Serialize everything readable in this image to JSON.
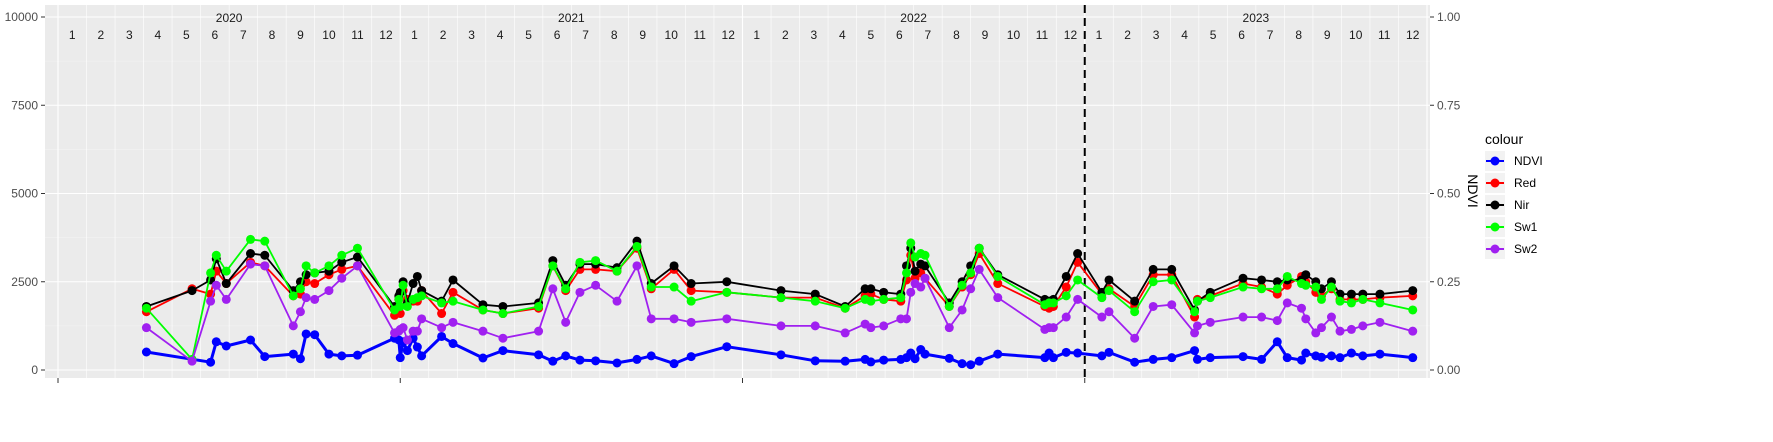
{
  "chart_data": {
    "type": "line",
    "y_right_label": "NDVI",
    "legend_title": "colour",
    "legend_position": "right",
    "grid": true,
    "y_left_ticks": [
      "0",
      "2500",
      "5000",
      "7500",
      "10000"
    ],
    "y_left_range": [
      0,
      10000
    ],
    "y_right_ticks": [
      "0.00",
      "0.25",
      "0.50",
      "0.75",
      "1.00"
    ],
    "y_right_range": [
      0,
      1
    ],
    "x_range": [
      0,
      48
    ],
    "years": [
      "2020",
      "2021",
      "2022",
      "2023"
    ],
    "months": [
      "1",
      "2",
      "3",
      "4",
      "5",
      "6",
      "7",
      "8",
      "9",
      "10",
      "11",
      "12"
    ],
    "vertical_dashed_line_x": 36.0,
    "series": [
      {
        "name": "NDVI",
        "color": "#0000ff",
        "x": [
          3.1,
          5.35,
          5.55,
          5.9,
          6.75,
          7.25,
          8.25,
          8.5,
          8.7,
          9.0,
          9.5,
          9.95,
          10.5,
          11.8,
          11.95,
          12.0,
          12.1,
          12.25,
          12.45,
          12.6,
          12.75,
          13.45,
          13.85,
          14.9,
          15.6,
          16.85,
          17.35,
          17.8,
          18.3,
          18.85,
          19.6,
          20.3,
          20.8,
          21.6,
          22.2,
          23.45,
          25.35,
          26.55,
          27.6,
          28.3,
          28.5,
          28.95,
          29.55,
          29.75,
          29.9,
          30.05,
          30.25,
          30.4,
          31.25,
          31.7,
          32.0,
          32.3,
          32.95,
          34.6,
          34.75,
          34.9,
          35.35,
          35.75,
          36.6,
          36.85,
          37.75,
          38.4,
          39.05,
          39.85,
          39.95,
          40.4,
          41.55,
          42.2,
          42.75,
          43.1,
          43.6,
          43.75,
          44.1,
          44.3,
          44.65,
          44.95,
          45.35,
          45.75,
          46.35,
          47.5
        ],
        "y": [
          0.051,
          0.022,
          0.08,
          0.068,
          0.085,
          0.038,
          0.045,
          0.032,
          0.102,
          0.1,
          0.045,
          0.04,
          0.042,
          0.09,
          0.085,
          0.035,
          0.08,
          0.055,
          0.09,
          0.065,
          0.04,
          0.095,
          0.075,
          0.034,
          0.055,
          0.043,
          0.025,
          0.04,
          0.028,
          0.026,
          0.02,
          0.03,
          0.04,
          0.018,
          0.038,
          0.066,
          0.043,
          0.026,
          0.025,
          0.03,
          0.023,
          0.028,
          0.03,
          0.035,
          0.048,
          0.032,
          0.058,
          0.045,
          0.033,
          0.018,
          0.015,
          0.025,
          0.045,
          0.035,
          0.048,
          0.035,
          0.05,
          0.048,
          0.04,
          0.05,
          0.022,
          0.03,
          0.035,
          0.055,
          0.03,
          0.035,
          0.038,
          0.03,
          0.08,
          0.035,
          0.028,
          0.048,
          0.04,
          0.036,
          0.04,
          0.035,
          0.048,
          0.04,
          0.045,
          0.035
        ]
      },
      {
        "name": "Red",
        "color": "#ff0000",
        "x": [
          3.1,
          4.7,
          5.35,
          5.55,
          5.9,
          6.75,
          7.25,
          8.25,
          8.5,
          8.7,
          9.0,
          9.5,
          9.95,
          10.5,
          11.8,
          11.95,
          12.0,
          12.1,
          12.25,
          12.45,
          12.6,
          12.75,
          13.45,
          13.85,
          14.9,
          15.6,
          16.85,
          17.35,
          17.8,
          18.3,
          18.85,
          19.6,
          20.3,
          20.8,
          21.6,
          22.2,
          23.45,
          25.35,
          26.55,
          27.6,
          28.3,
          28.5,
          28.95,
          29.55,
          29.75,
          29.9,
          30.05,
          30.25,
          30.4,
          31.25,
          31.7,
          32.0,
          32.3,
          32.95,
          34.6,
          34.75,
          34.9,
          35.35,
          35.75,
          36.6,
          36.85,
          37.75,
          38.4,
          39.05,
          39.85,
          39.95,
          40.4,
          41.55,
          42.2,
          42.75,
          43.1,
          43.6,
          43.75,
          44.1,
          44.3,
          44.65,
          44.95,
          45.35,
          45.75,
          46.35,
          47.5
        ],
        "y": [
          1650,
          2300,
          2150,
          2800,
          2450,
          3050,
          2950,
          2100,
          2150,
          2500,
          2450,
          2700,
          2850,
          2950,
          1550,
          2000,
          1600,
          2250,
          2000,
          1950,
          1950,
          2250,
          1600,
          2200,
          1700,
          1600,
          1750,
          2950,
          2250,
          2850,
          2850,
          2800,
          3450,
          2300,
          2850,
          2250,
          2200,
          2050,
          2050,
          1750,
          2100,
          2150,
          2000,
          1950,
          2550,
          3250,
          2600,
          2750,
          2600,
          1800,
          2350,
          2700,
          3300,
          2450,
          1800,
          1750,
          1800,
          2350,
          3050,
          2150,
          2300,
          1800,
          2700,
          2700,
          1500,
          2000,
          2100,
          2450,
          2350,
          2150,
          2400,
          2650,
          2500,
          2200,
          2100,
          2300,
          2000,
          2000,
          2000,
          2050,
          2100
        ]
      },
      {
        "name": "Nir",
        "color": "#000000",
        "x": [
          3.1,
          4.7,
          5.35,
          5.55,
          5.9,
          6.75,
          7.25,
          8.25,
          8.5,
          8.7,
          9.0,
          9.5,
          9.95,
          10.5,
          11.8,
          11.95,
          12.0,
          12.1,
          12.25,
          12.45,
          12.6,
          12.75,
          13.45,
          13.85,
          14.9,
          15.6,
          16.85,
          17.35,
          17.8,
          18.3,
          18.85,
          19.6,
          20.3,
          20.8,
          21.6,
          22.2,
          23.45,
          25.35,
          26.55,
          27.6,
          28.3,
          28.5,
          28.95,
          29.55,
          29.75,
          29.9,
          30.05,
          30.25,
          30.4,
          31.25,
          31.7,
          32.0,
          32.3,
          32.95,
          34.6,
          34.75,
          34.9,
          35.35,
          35.75,
          36.6,
          36.85,
          37.75,
          38.4,
          39.05,
          39.85,
          39.95,
          40.4,
          41.55,
          42.2,
          42.75,
          43.1,
          43.6,
          43.75,
          44.1,
          44.3,
          44.65,
          44.95,
          45.35,
          45.75,
          46.35,
          47.5
        ],
        "y": [
          1800,
          2250,
          2550,
          3150,
          2450,
          3300,
          3250,
          2250,
          2500,
          2700,
          2750,
          2800,
          3050,
          3200,
          1800,
          2100,
          2200,
          2500,
          1900,
          2450,
          2650,
          2250,
          1950,
          2550,
          1850,
          1800,
          1900,
          3100,
          2400,
          3000,
          3000,
          2900,
          3650,
          2450,
          2950,
          2450,
          2500,
          2250,
          2150,
          1800,
          2300,
          2300,
          2200,
          2150,
          2950,
          3450,
          2800,
          3000,
          2950,
          1900,
          2500,
          2950,
          3450,
          2700,
          2000,
          1950,
          2000,
          2650,
          3300,
          2200,
          2550,
          1950,
          2850,
          2850,
          1700,
          1950,
          2200,
          2600,
          2550,
          2500,
          2550,
          2550,
          2700,
          2500,
          2300,
          2500,
          2150,
          2150,
          2150,
          2150,
          2250
        ]
      },
      {
        "name": "Sw1",
        "color": "#00ff00",
        "x": [
          3.1,
          4.7,
          5.35,
          5.55,
          5.9,
          6.75,
          7.25,
          8.25,
          8.5,
          8.7,
          9.0,
          9.5,
          9.95,
          10.5,
          11.8,
          11.95,
          12.0,
          12.1,
          12.25,
          12.45,
          12.6,
          12.75,
          13.45,
          13.85,
          14.9,
          15.6,
          16.85,
          17.35,
          17.8,
          18.3,
          18.85,
          19.6,
          20.3,
          20.8,
          21.6,
          22.2,
          23.45,
          25.35,
          26.55,
          27.6,
          28.3,
          28.5,
          28.95,
          29.55,
          29.75,
          29.9,
          30.05,
          30.25,
          30.4,
          31.25,
          31.7,
          32.0,
          32.3,
          32.95,
          34.6,
          34.75,
          34.9,
          35.35,
          35.75,
          36.6,
          36.85,
          37.75,
          38.4,
          39.05,
          39.85,
          39.95,
          40.4,
          41.55,
          42.2,
          42.75,
          43.1,
          43.6,
          43.75,
          44.1,
          44.3,
          44.65,
          44.95,
          45.35,
          45.75,
          46.35,
          47.5
        ],
        "y": [
          1750,
          300,
          2750,
          3250,
          2800,
          3700,
          3650,
          2100,
          2300,
          2950,
          2750,
          2950,
          3250,
          3450,
          1700,
          2000,
          1800,
          2400,
          1800,
          2000,
          2050,
          2100,
          1900,
          1950,
          1700,
          1600,
          1800,
          2950,
          2300,
          3050,
          3100,
          2800,
          3500,
          2350,
          2350,
          1950,
          2200,
          2050,
          1950,
          1750,
          2000,
          1950,
          2000,
          2050,
          2750,
          3600,
          3200,
          3300,
          3250,
          1800,
          2400,
          2750,
          3450,
          2650,
          1850,
          1900,
          1900,
          2100,
          2550,
          2050,
          2250,
          1650,
          2500,
          2550,
          1650,
          1950,
          2050,
          2350,
          2300,
          2300,
          2650,
          2450,
          2400,
          2350,
          2000,
          2350,
          1950,
          1900,
          2000,
          1900,
          1700
        ]
      },
      {
        "name": "Sw2",
        "color": "#a020f0",
        "x": [
          3.1,
          4.7,
          5.35,
          5.55,
          5.9,
          6.75,
          7.25,
          8.25,
          8.5,
          8.7,
          9.0,
          9.5,
          9.95,
          10.5,
          11.8,
          11.95,
          12.0,
          12.1,
          12.25,
          12.45,
          12.6,
          12.75,
          13.45,
          13.85,
          14.9,
          15.6,
          16.85,
          17.35,
          17.8,
          18.3,
          18.85,
          19.6,
          20.3,
          20.8,
          21.6,
          22.2,
          23.45,
          25.35,
          26.55,
          27.6,
          28.3,
          28.5,
          28.95,
          29.55,
          29.75,
          29.9,
          30.05,
          30.25,
          30.4,
          31.25,
          31.7,
          32.0,
          32.3,
          32.95,
          34.6,
          34.75,
          34.9,
          35.35,
          35.75,
          36.6,
          36.85,
          37.75,
          38.4,
          39.05,
          39.85,
          39.95,
          40.4,
          41.55,
          42.2,
          42.75,
          43.1,
          43.6,
          43.75,
          44.1,
          44.3,
          44.65,
          44.95,
          45.35,
          45.75,
          46.35,
          47.5
        ],
        "y": [
          1200,
          250,
          1950,
          2400,
          2000,
          3000,
          2950,
          1250,
          1650,
          2050,
          2000,
          2250,
          2600,
          2950,
          1050,
          1100,
          1150,
          1200,
          850,
          1100,
          1100,
          1450,
          1200,
          1350,
          1100,
          900,
          1100,
          2300,
          1350,
          2200,
          2400,
          1950,
          2950,
          1450,
          1450,
          1350,
          1450,
          1250,
          1250,
          1050,
          1300,
          1200,
          1250,
          1450,
          1450,
          2200,
          2450,
          2350,
          2600,
          1200,
          1700,
          2300,
          2850,
          2050,
          1150,
          1200,
          1200,
          1500,
          2000,
          1500,
          1650,
          900,
          1800,
          1850,
          1050,
          1250,
          1350,
          1500,
          1500,
          1400,
          1900,
          1750,
          1450,
          1050,
          1200,
          1500,
          1100,
          1150,
          1250,
          1350,
          1100
        ]
      }
    ]
  }
}
